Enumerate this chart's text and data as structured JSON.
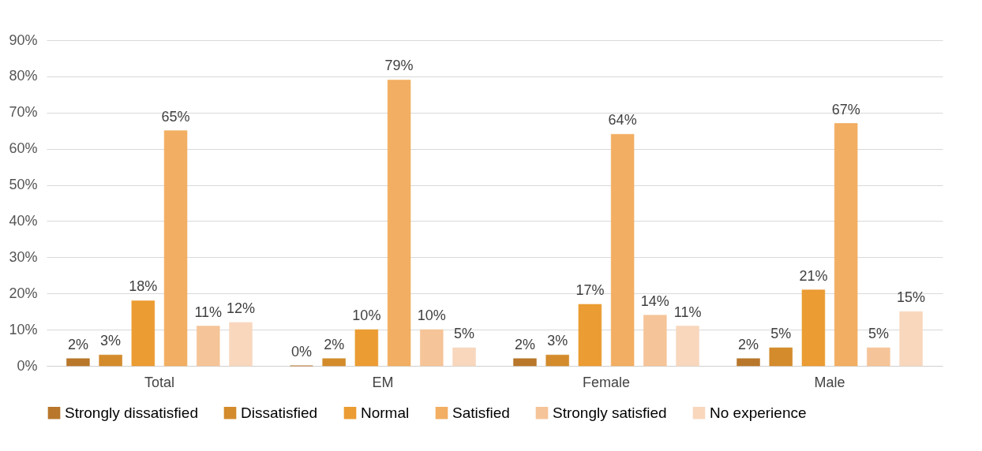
{
  "chart_data": {
    "type": "bar",
    "categories": [
      "Total",
      "EM",
      "Female",
      "Male"
    ],
    "series": [
      {
        "name": "Strongly dissatisfied",
        "color": "#b8772b",
        "values": [
          2,
          0,
          2,
          2
        ],
        "value_labels": [
          "2%",
          "0%",
          "2%",
          "2%"
        ]
      },
      {
        "name": "Dissatisfied",
        "color": "#d38b2c",
        "values": [
          3,
          2,
          3,
          5
        ],
        "value_labels": [
          "3%",
          "2%",
          "3%",
          "5%"
        ]
      },
      {
        "name": "Normal",
        "color": "#eb9c32",
        "values": [
          18,
          10,
          17,
          21
        ],
        "value_labels": [
          "18%",
          "10%",
          "17%",
          "21%"
        ]
      },
      {
        "name": "Satisfied",
        "color": "#f2ae62",
        "values": [
          65,
          79,
          64,
          67
        ],
        "value_labels": [
          "65%",
          "79%",
          "64%",
          "67%"
        ]
      },
      {
        "name": "Strongly satisfied",
        "color": "#f5c498",
        "values": [
          11,
          10,
          14,
          5
        ],
        "value_labels": [
          "11%",
          "10%",
          "14%",
          "5%"
        ]
      },
      {
        "name": "No experience",
        "color": "#f8d7bd",
        "values": [
          12,
          5,
          11,
          15
        ],
        "value_labels": [
          "12%",
          "5%",
          "11%",
          "15%"
        ]
      }
    ],
    "ylim": [
      0,
      90
    ],
    "yticks": [
      {
        "value": 0,
        "label": "0%"
      },
      {
        "value": 10,
        "label": "10%"
      },
      {
        "value": 20,
        "label": "20%"
      },
      {
        "value": 30,
        "label": "30%"
      },
      {
        "value": 40,
        "label": "40%"
      },
      {
        "value": 50,
        "label": "50%"
      },
      {
        "value": 60,
        "label": "60%"
      },
      {
        "value": 70,
        "label": "70%"
      },
      {
        "value": 80,
        "label": "80%"
      },
      {
        "value": 90,
        "label": "90%"
      }
    ],
    "grid": "y",
    "legend": "bottom"
  }
}
